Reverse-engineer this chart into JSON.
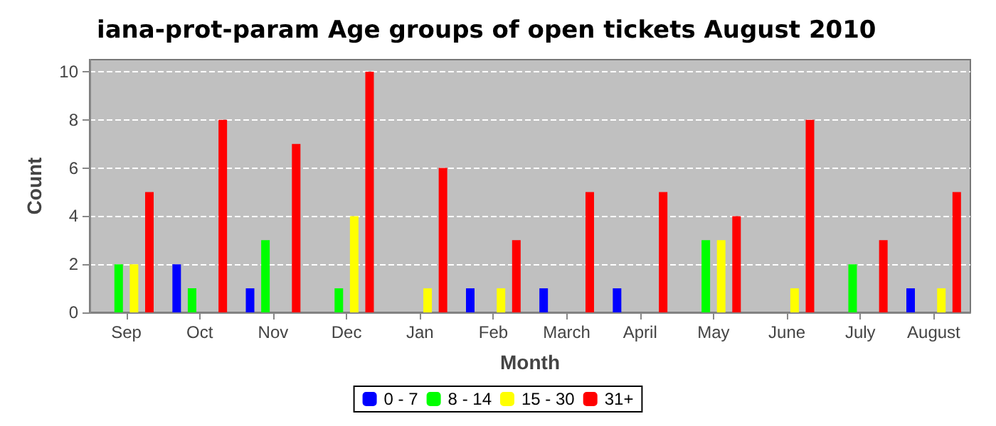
{
  "chart_data": {
    "type": "bar",
    "title": "iana-prot-param Age groups of open tickets August 2010",
    "xlabel": "Month",
    "ylabel": "Count",
    "categories": [
      "Sep",
      "Oct",
      "Nov",
      "Dec",
      "Jan",
      "Feb",
      "March",
      "April",
      "May",
      "June",
      "July",
      "August"
    ],
    "series": [
      {
        "name": "0 - 7",
        "color": "#0000ff",
        "values": [
          0,
          2,
          1,
          0,
          0,
          1,
          1,
          1,
          0,
          0,
          0,
          1
        ]
      },
      {
        "name": "8 - 14",
        "color": "#00ff00",
        "values": [
          2,
          1,
          3,
          1,
          0,
          0,
          0,
          0,
          3,
          0,
          2,
          0
        ]
      },
      {
        "name": "15 - 30",
        "color": "#ffff00",
        "values": [
          2,
          0,
          0,
          4,
          1,
          1,
          0,
          0,
          3,
          1,
          0,
          1
        ]
      },
      {
        "name": "31+",
        "color": "#ff0000",
        "values": [
          5,
          8,
          7,
          10,
          6,
          3,
          5,
          5,
          4,
          8,
          3,
          5
        ]
      }
    ],
    "ylim": [
      0,
      10.5
    ],
    "yticks": [
      0,
      2,
      4,
      6,
      8,
      10
    ],
    "grid": "y",
    "legend": "bottom"
  }
}
